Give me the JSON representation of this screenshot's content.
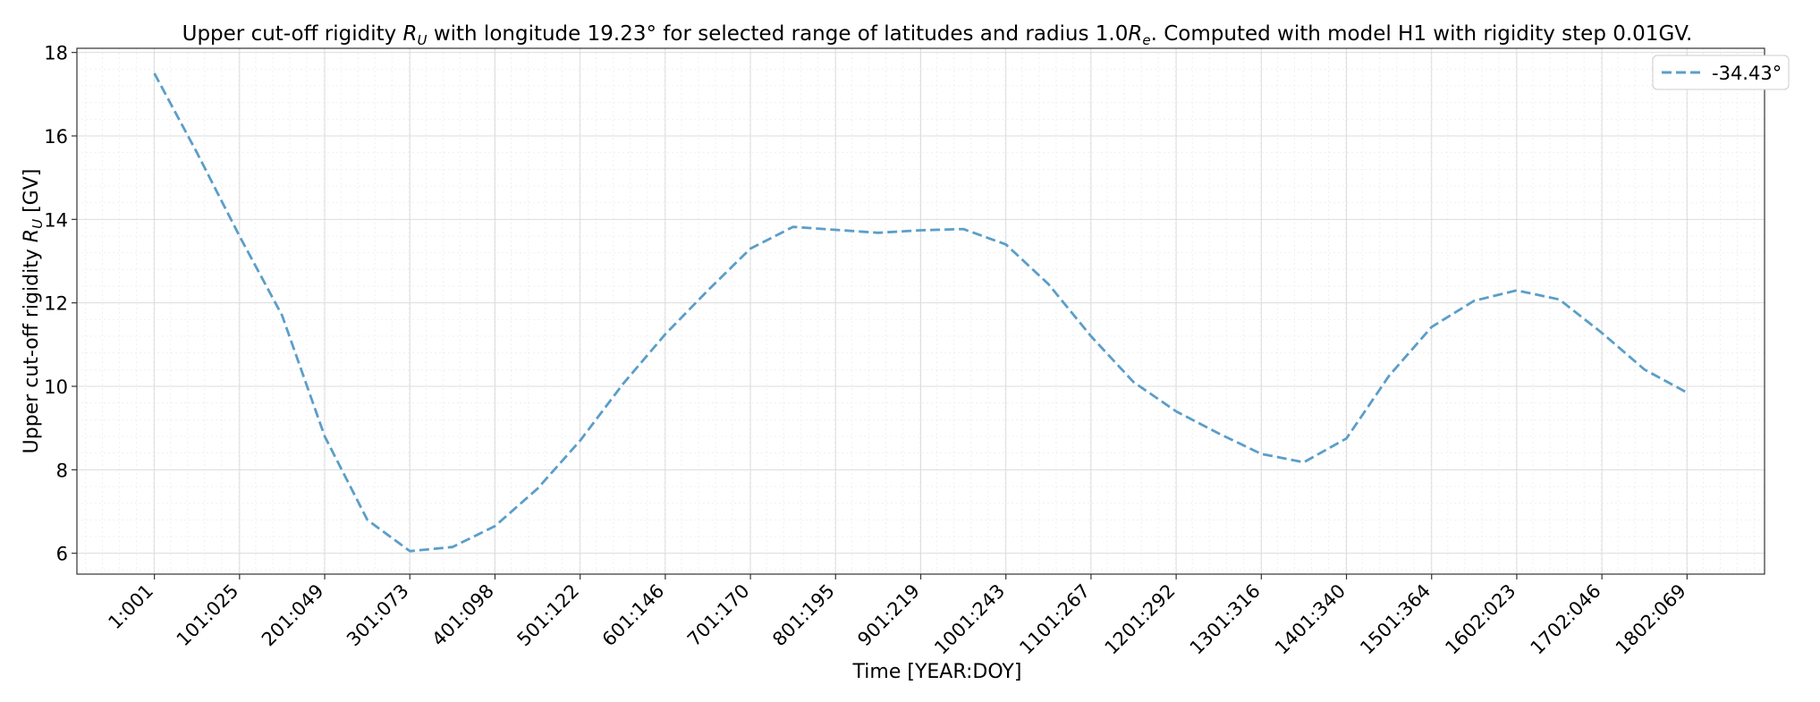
{
  "chart_data": {
    "type": "line",
    "title_parts": {
      "pre": "Upper cut-off rigidity ",
      "sym1": "R",
      "sub1": "U",
      "mid": " with longitude 19.23° for selected range of latitudes and radius 1.0",
      "sym2": "R",
      "sub2": "e",
      "post": ". Computed with model H1 with rigidity step 0.01GV."
    },
    "xlabel": "Time [YEAR:DOY]",
    "ylabel_parts": {
      "pre": "Upper cut-off rigidity ",
      "sym": "R",
      "sub": "U",
      "post": " [GV]"
    },
    "x_ticks": [
      "1:001",
      "101:025",
      "201:049",
      "301:073",
      "401:098",
      "501:122",
      "601:146",
      "701:170",
      "801:195",
      "901:219",
      "1001:243",
      "1101:267",
      "1201:292",
      "1301:316",
      "1401:340",
      "1501:364",
      "1602:023",
      "1702:046",
      "1802:069"
    ],
    "xlim": [
      -90,
      1892
    ],
    "ylim": [
      5.5,
      18.1
    ],
    "y_ticks": [
      6,
      8,
      10,
      12,
      14,
      16,
      18
    ],
    "grid": true,
    "minor_grid": true,
    "legend_position": "top-right",
    "series": [
      {
        "name": "-34.43°",
        "color": "#5b9ec9",
        "style": "dashed",
        "x": [
          1,
          51,
          101,
          151,
          201,
          251,
          301,
          351,
          401,
          451,
          501,
          551,
          601,
          651,
          701,
          751,
          801,
          851,
          901,
          951,
          1001,
          1051,
          1101,
          1151,
          1201,
          1251,
          1301,
          1351,
          1401,
          1451,
          1501,
          1551,
          1601,
          1651,
          1701,
          1751,
          1801
        ],
        "y": [
          17.5,
          15.6,
          13.6,
          11.7,
          8.8,
          6.8,
          6.05,
          6.15,
          6.65,
          7.55,
          8.7,
          10.05,
          11.25,
          12.3,
          13.3,
          13.82,
          13.75,
          13.68,
          13.74,
          13.77,
          13.4,
          12.45,
          11.2,
          10.1,
          9.4,
          8.87,
          8.38,
          8.18,
          8.75,
          10.25,
          11.42,
          12.05,
          12.3,
          12.08,
          11.28,
          10.4,
          9.85
        ]
      }
    ]
  }
}
